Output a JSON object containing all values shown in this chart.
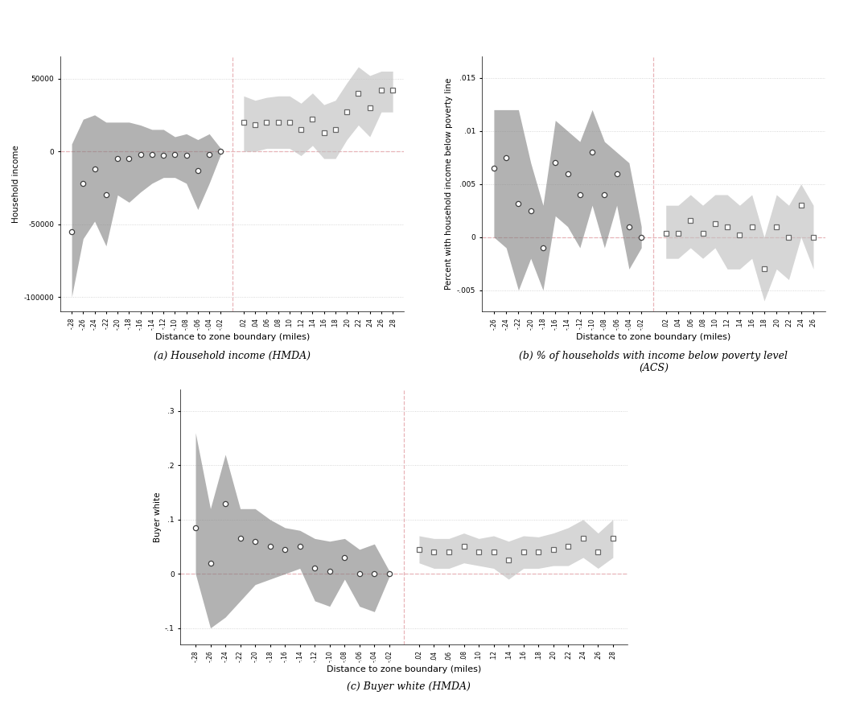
{
  "chart_a": {
    "ylabel": "Household income",
    "xlabel": "Distance to zone boundary (miles)",
    "left_x": [
      -0.28,
      -0.26,
      -0.24,
      -0.22,
      -0.2,
      -0.18,
      -0.16,
      -0.14,
      -0.12,
      -0.1,
      -0.08,
      -0.06,
      -0.04,
      -0.02
    ],
    "left_y": [
      -55000,
      -22000,
      -12000,
      -30000,
      -5000,
      -5000,
      -2000,
      -2000,
      -3000,
      -2000,
      -3000,
      -13000,
      -2000,
      0
    ],
    "left_upper": [
      5000,
      22000,
      25000,
      20000,
      20000,
      20000,
      18000,
      15000,
      15000,
      10000,
      12000,
      8000,
      12000,
      2000
    ],
    "left_lower": [
      -100000,
      -60000,
      -48000,
      -65000,
      -30000,
      -35000,
      -28000,
      -22000,
      -18000,
      -18000,
      -22000,
      -40000,
      -22000,
      -2000
    ],
    "right_x": [
      0.02,
      0.04,
      0.06,
      0.08,
      0.1,
      0.12,
      0.14,
      0.16,
      0.18,
      0.2,
      0.22,
      0.24,
      0.26,
      0.28
    ],
    "right_y": [
      20000,
      18000,
      20000,
      20000,
      20000,
      15000,
      22000,
      13000,
      15000,
      27000,
      40000,
      30000,
      42000,
      42000
    ],
    "right_upper": [
      38000,
      35000,
      37000,
      38000,
      38000,
      33000,
      40000,
      32000,
      35000,
      47000,
      58000,
      52000,
      55000,
      55000
    ],
    "right_lower": [
      0,
      0,
      2000,
      2000,
      2000,
      -3000,
      4000,
      -5000,
      -5000,
      8000,
      18000,
      10000,
      27000,
      27000
    ],
    "ylim": [
      -110000,
      65000
    ],
    "yticks": [
      -100000,
      -50000,
      0,
      50000
    ],
    "ytick_labels": [
      "-100000",
      "-50000",
      "0",
      "50000"
    ],
    "xlim": [
      -0.3,
      0.3
    ],
    "caption": "(a) Household income (HMDA)"
  },
  "chart_b": {
    "ylabel": "Percent with household income below poverty line",
    "xlabel": "Distance to zone boundary (miles)",
    "left_x": [
      -0.26,
      -0.24,
      -0.22,
      -0.2,
      -0.18,
      -0.16,
      -0.14,
      -0.12,
      -0.1,
      -0.08,
      -0.06,
      -0.04,
      -0.02
    ],
    "left_y": [
      0.0065,
      0.0075,
      0.0032,
      0.0025,
      -0.001,
      0.007,
      0.006,
      0.004,
      0.008,
      0.004,
      0.006,
      0.001,
      0.0
    ],
    "left_upper": [
      0.012,
      0.012,
      0.012,
      0.007,
      0.003,
      0.011,
      0.01,
      0.009,
      0.012,
      0.009,
      0.008,
      0.007,
      0.001
    ],
    "left_lower": [
      0.0,
      -0.001,
      -0.005,
      -0.002,
      -0.005,
      0.002,
      0.001,
      -0.001,
      0.003,
      -0.001,
      0.003,
      -0.003,
      -0.001
    ],
    "right_x": [
      0.02,
      0.04,
      0.06,
      0.08,
      0.1,
      0.12,
      0.14,
      0.16,
      0.18,
      0.2,
      0.22,
      0.24,
      0.26
    ],
    "right_y": [
      0.0004,
      0.0004,
      0.0016,
      0.0004,
      0.0013,
      0.001,
      0.0002,
      0.001,
      -0.003,
      0.001,
      0.0,
      0.003,
      0.0
    ],
    "right_upper": [
      0.003,
      0.003,
      0.004,
      0.003,
      0.004,
      0.004,
      0.003,
      0.004,
      0.0,
      0.004,
      0.003,
      0.005,
      0.003
    ],
    "right_lower": [
      -0.002,
      -0.002,
      -0.001,
      -0.002,
      -0.001,
      -0.003,
      -0.003,
      -0.002,
      -0.006,
      -0.003,
      -0.004,
      0.0,
      -0.003
    ],
    "ylim": [
      -0.007,
      0.017
    ],
    "yticks": [
      -0.005,
      0.0,
      0.005,
      0.01,
      0.015
    ],
    "ytick_labels": [
      "-.005",
      "0",
      ".005",
      ".01",
      ".015"
    ],
    "xlim": [
      -0.28,
      0.28
    ],
    "caption": "(b) % of households with income below poverty level\n(ACS)"
  },
  "chart_c": {
    "ylabel": "Buyer white",
    "xlabel": "Distance to zone boundary (miles)",
    "left_x": [
      -0.28,
      -0.26,
      -0.24,
      -0.22,
      -0.2,
      -0.18,
      -0.16,
      -0.14,
      -0.12,
      -0.1,
      -0.08,
      -0.06,
      -0.04,
      -0.02
    ],
    "left_y": [
      0.085,
      0.02,
      0.13,
      0.065,
      0.06,
      0.05,
      0.045,
      0.05,
      0.01,
      0.005,
      0.03,
      0.0,
      0.0,
      0.0
    ],
    "left_upper": [
      0.26,
      0.12,
      0.22,
      0.12,
      0.12,
      0.1,
      0.085,
      0.08,
      0.065,
      0.06,
      0.065,
      0.045,
      0.055,
      0.005
    ],
    "left_lower": [
      0.0,
      -0.1,
      -0.08,
      -0.05,
      -0.02,
      -0.01,
      0.0,
      0.01,
      -0.05,
      -0.06,
      -0.01,
      -0.06,
      -0.07,
      -0.005
    ],
    "right_x": [
      0.02,
      0.04,
      0.06,
      0.08,
      0.1,
      0.12,
      0.14,
      0.16,
      0.18,
      0.2,
      0.22,
      0.24,
      0.26,
      0.28
    ],
    "right_y": [
      0.045,
      0.04,
      0.04,
      0.05,
      0.04,
      0.04,
      0.025,
      0.04,
      0.04,
      0.045,
      0.05,
      0.065,
      0.04,
      0.065
    ],
    "right_upper": [
      0.07,
      0.065,
      0.065,
      0.075,
      0.065,
      0.07,
      0.06,
      0.07,
      0.068,
      0.075,
      0.085,
      0.1,
      0.075,
      0.1
    ],
    "right_lower": [
      0.02,
      0.01,
      0.01,
      0.02,
      0.015,
      0.01,
      -0.01,
      0.01,
      0.01,
      0.015,
      0.015,
      0.03,
      0.01,
      0.03
    ],
    "ylim": [
      -0.13,
      0.34
    ],
    "yticks": [
      -0.1,
      0.0,
      0.1,
      0.2,
      0.3
    ],
    "ytick_labels": [
      "-.1",
      "0",
      ".1",
      ".2",
      ".3"
    ],
    "xlim": [
      -0.3,
      0.3
    ],
    "caption": "(c) Buyer white (HMDA)"
  },
  "dark_fill": "#808080",
  "light_fill": "#c0c0c0",
  "dark_marker_color": "#404040",
  "light_marker_color": "#686868",
  "vline_color": "#e8b4b8",
  "hline_color": "#e8b4b8",
  "background_color": "#ffffff",
  "grid_color": "#cccccc",
  "caption_fontsize": 9,
  "axis_label_fontsize": 7.5,
  "tick_fontsize": 6.5
}
